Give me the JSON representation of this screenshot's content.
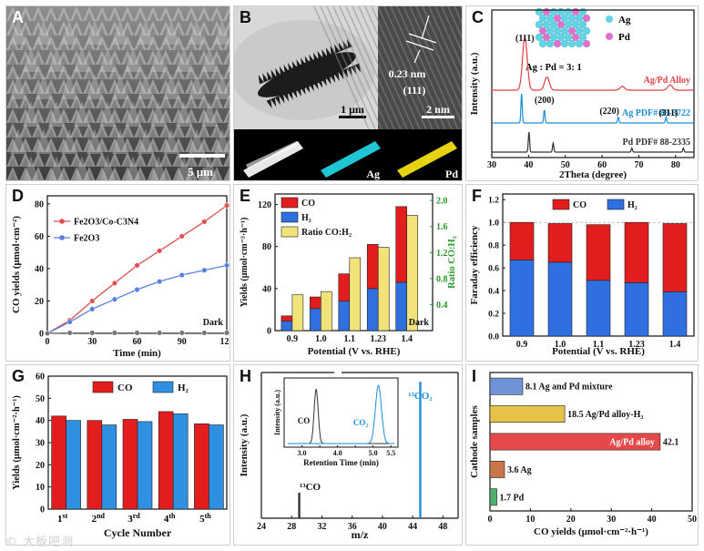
{
  "figure": {
    "watermark": "© 大板吧测",
    "labels": {
      "A": "A",
      "B": "B",
      "C": "C",
      "D": "D",
      "E": "E",
      "F": "F",
      "G": "G",
      "H": "H",
      "I": "I"
    }
  },
  "panelA": {
    "scalebar": "5 μm"
  },
  "panelB": {
    "scalebar1": "1 μm",
    "scalebar2": "2 nm",
    "dspacing": "0.23 nm",
    "plane": "(111)",
    "map_ag": "Ag",
    "map_pd": "Pd"
  },
  "panelC": {
    "legend_ag": "Ag",
    "legend_pd": "Pd",
    "ratio": "Ag : Pd = 3: 1",
    "colors": {
      "alloy": "#e04040",
      "ag": "#1a8fd6",
      "pd": "#333333"
    },
    "chart_data": {
      "type": "line",
      "title": "",
      "xlabel": "2Theta (degree)",
      "ylabel": "Intensity (a.u.)",
      "xlim": [
        30,
        85
      ],
      "xticks": [
        30,
        40,
        50,
        60,
        70,
        80
      ],
      "series": [
        {
          "name": "Ag/Pd Alloy",
          "peaks": [
            {
              "x": 39.0,
              "h": 1.0
            },
            {
              "x": 45.0,
              "h": 0.25
            },
            {
              "x": 65.5,
              "h": 0.07
            },
            {
              "x": 78.5,
              "h": 0.1
            }
          ]
        },
        {
          "name": "Ag PDF# 89-3722",
          "peaks": [
            {
              "x": 38.1,
              "h": 1.0
            },
            {
              "x": 44.3,
              "h": 0.45
            },
            {
              "x": 64.4,
              "h": 0.2
            },
            {
              "x": 77.4,
              "h": 0.2
            }
          ]
        },
        {
          "name": "Pd PDF# 88-2335",
          "peaks": [
            {
              "x": 40.1,
              "h": 1.0
            },
            {
              "x": 46.7,
              "h": 0.45
            },
            {
              "x": 68.1,
              "h": 0.2
            },
            {
              "x": 82.1,
              "h": 0.2
            }
          ]
        }
      ],
      "annotations": [
        "(111)",
        "(200)",
        "(220)",
        "(311)"
      ]
    }
  },
  "panelD": {
    "dark_label": "Dark",
    "chart_data": {
      "type": "line",
      "xlabel": "Time (min)",
      "ylabel": "CO yields (μmol·cm⁻²)",
      "x": [
        0,
        15,
        30,
        45,
        60,
        75,
        90,
        105,
        120
      ],
      "xlim": [
        0,
        120
      ],
      "ylim": [
        0,
        85
      ],
      "xticks": [
        0,
        30,
        60,
        90,
        120
      ],
      "yticks": [
        0,
        20,
        40,
        60,
        80
      ],
      "series": [
        {
          "name": "Fe2O3/Co-C3N4",
          "color": "#e05050",
          "values": [
            0,
            8,
            20,
            31,
            42,
            51,
            60,
            69,
            79
          ]
        },
        {
          "name": "Fe2O3",
          "color": "#5a7fe0",
          "values": [
            0,
            7,
            15,
            21,
            27,
            32,
            36,
            39,
            42
          ]
        },
        {
          "name": "Dark",
          "color": "#777777",
          "values": [
            0,
            0.3,
            0.3,
            0.3,
            0.3,
            0.3,
            0.3,
            0.3,
            0.3
          ]
        }
      ]
    }
  },
  "panelE": {
    "dark_label": "Dark",
    "chart_data": {
      "type": "bar",
      "xlabel": "Potential (V vs. RHE)",
      "ylabel": "Yields (μmol·cm⁻²·h⁻¹)",
      "y2label": "Ratio CO:H₂",
      "categories": [
        "0.9",
        "1.0",
        "1.1",
        "1.23",
        "1.4"
      ],
      "ylim": [
        0,
        130
      ],
      "yticks": [
        0,
        40,
        80,
        120
      ],
      "y2lim": [
        0,
        2.1
      ],
      "y2ticks": [
        0.4,
        0.8,
        1.2,
        1.6,
        2.0
      ],
      "series": [
        {
          "name": "CO",
          "color": "#e11d1d",
          "values": [
            5,
            11,
            26,
            42,
            72
          ]
        },
        {
          "name": "H₂",
          "color": "#2f6fe0",
          "values": [
            9,
            21,
            28,
            40,
            46
          ]
        },
        {
          "name": "Ratio CO:H₂",
          "color": "#f1e27a",
          "values": [
            0.55,
            0.6,
            1.12,
            1.28,
            1.77
          ]
        }
      ]
    }
  },
  "panelF": {
    "chart_data": {
      "type": "bar",
      "xlabel": "Potential (V vs. RHE)",
      "ylabel": "Faraday efficiency",
      "categories": [
        "0.9",
        "1.0",
        "1.1",
        "1.23",
        "1.4"
      ],
      "ylim": [
        0,
        1.25
      ],
      "yticks": [
        "0.0",
        "0.2",
        "0.4",
        "0.6",
        "0.8",
        "1.0",
        "1.2"
      ],
      "series": [
        {
          "name": "H₂",
          "color": "#2f6fe0",
          "values": [
            0.67,
            0.65,
            0.49,
            0.47,
            0.39
          ]
        },
        {
          "name": "CO",
          "color": "#e11d1d",
          "values": [
            0.33,
            0.34,
            0.49,
            0.53,
            0.6
          ]
        }
      ]
    }
  },
  "panelG": {
    "chart_data": {
      "type": "bar",
      "xlabel": "Cycle Number",
      "ylabel": "Yields (μmol·cm⁻²·h⁻¹)",
      "categories": [
        {
          "n": "1",
          "s": "st"
        },
        {
          "n": "2",
          "s": "nd"
        },
        {
          "n": "3",
          "s": "rd"
        },
        {
          "n": "4",
          "s": "th"
        },
        {
          "n": "5",
          "s": "th"
        }
      ],
      "ylim": [
        0,
        60
      ],
      "yticks": [
        0,
        10,
        20,
        30,
        40,
        50,
        60
      ],
      "series": [
        {
          "name": "CO",
          "color": "#e11d1d",
          "values": [
            42,
            40,
            40.5,
            44,
            38.5
          ]
        },
        {
          "name": "H₂",
          "color": "#2f8fe0",
          "values": [
            40,
            38,
            39.5,
            43,
            38
          ]
        }
      ]
    }
  },
  "panelH": {
    "co_label": "¹³CO",
    "co2_label": "¹³CO₂",
    "inset": {
      "xlabel": "Retention Time (min)",
      "ylabel": "Intensity (a.u.)",
      "xticks": [
        "2.5",
        "3.0",
        "3.5",
        "4.0",
        "4.5",
        "5.0",
        "5.5"
      ],
      "co": "CO",
      "co2": "CO₂"
    },
    "chart_data": {
      "type": "bar",
      "xlabel": "m/z",
      "ylabel": "Intensity (a.u.)",
      "xlim": [
        24,
        50
      ],
      "xticks": [
        24,
        28,
        32,
        36,
        40,
        44,
        48
      ],
      "peaks": [
        {
          "x": 29,
          "h": 0.18,
          "label": "¹³CO"
        },
        {
          "x": 45,
          "h": 0.96,
          "label": "¹³CO₂"
        }
      ]
    }
  },
  "panelI": {
    "chart_data": {
      "type": "bar",
      "orientation": "horizontal",
      "xlabel": "CO yields (μmol·cm⁻²·h⁻¹)",
      "ylabel": "Cathode samples",
      "xlim": [
        0,
        50
      ],
      "xticks": [
        0,
        10,
        20,
        30,
        40,
        50
      ],
      "items": [
        {
          "name": "Ag and Pd mixture",
          "value": 8.1,
          "color": "#6e93d6"
        },
        {
          "name": "Ag/Pd alloy-H₂",
          "value": 18.5,
          "color": "#e6c24a"
        },
        {
          "name": "Ag/Pd alloy",
          "value": 42.1,
          "color": "#e54848"
        },
        {
          "name": "Ag",
          "value": 3.6,
          "color": "#c8764a"
        },
        {
          "name": "Pd",
          "value": 1.7,
          "color": "#4caf6a"
        }
      ]
    }
  }
}
